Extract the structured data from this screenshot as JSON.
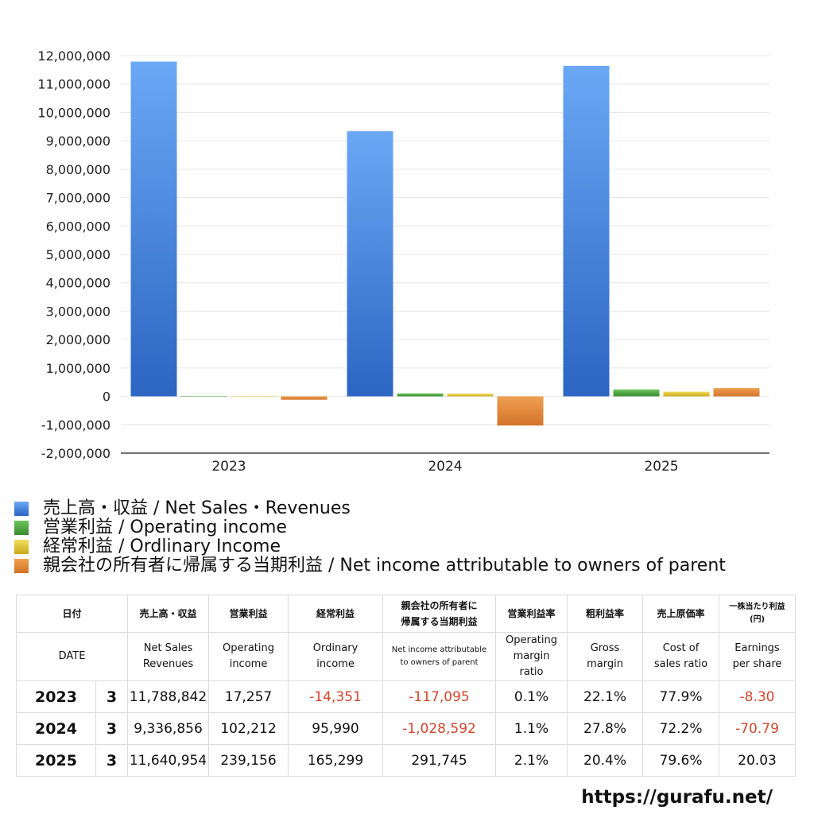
{
  "chart_data": {
    "type": "bar",
    "categories": [
      "2023",
      "2024",
      "2025"
    ],
    "ylim": [
      -2000000,
      12000000
    ],
    "yticks": [
      -2000000,
      -1000000,
      0,
      1000000,
      2000000,
      3000000,
      4000000,
      5000000,
      6000000,
      7000000,
      8000000,
      9000000,
      10000000,
      11000000,
      12000000
    ],
    "ytick_labels": [
      "-2,000,000",
      "-1,000,000",
      "0",
      "1,000,000",
      "2,000,000",
      "3,000,000",
      "4,000,000",
      "5,000,000",
      "6,000,000",
      "7,000,000",
      "8,000,000",
      "9,000,000",
      "10,000,000",
      "11,000,000",
      "12,000,000"
    ],
    "grid": true,
    "legend_position": "bottom",
    "series": [
      {
        "name": "売上高・収益 / Net Sales・Revenues",
        "values": [
          11788842,
          9336856,
          11640954
        ],
        "color_top": "#6aa8f5",
        "color_bottom": "#2c65c2"
      },
      {
        "name": "営業利益 / Operating income",
        "values": [
          17257,
          102212,
          239156
        ],
        "color_top": "#6cc45c",
        "color_bottom": "#3a8a30"
      },
      {
        "name": "経常利益 / Ordlinary Income",
        "values": [
          -14351,
          95990,
          165299
        ],
        "color_top": "#f2de5e",
        "color_bottom": "#c9a91a"
      },
      {
        "name": "親会社の所有者に帰属する当期利益 / Net income attributable to owners of parent",
        "values": [
          -117095,
          -1028592,
          291745
        ],
        "color_top": "#f0a050",
        "color_bottom": "#d27328"
      }
    ]
  },
  "table": {
    "header_jp": {
      "date": "日付",
      "sales": "売上高・収益",
      "op": "営業利益",
      "ord": "経常利益",
      "ni_line1": "親会社の所有者に",
      "ni_line2": "帰属する当期利益",
      "opm": "営業利益率",
      "gross": "粗利益率",
      "cost": "売上原価率",
      "eps_line1": "一株当たり利益",
      "eps_line2": "(円)"
    },
    "header_en": {
      "date": "DATE",
      "sales_line1": "Net Sales",
      "sales_line2": "Revenues",
      "op_line1": "Operating",
      "op_line2": "income",
      "ord_line1": "Ordinary",
      "ord_line2": "income",
      "ni_line1": "Net income attributable",
      "ni_line2": "to owners of parent",
      "opm_line1": "Operating",
      "opm_line2": "margin",
      "opm_line3": "ratio",
      "gross_line1": "Gross",
      "gross_line2": "margin",
      "cost_line1": "Cost of",
      "cost_line2": "sales ratio",
      "eps_line1": "Earnings",
      "eps_line2": "per share"
    },
    "rows": [
      {
        "year": "2023",
        "month": "3",
        "sales": "11,788,842",
        "op": "17,257",
        "ord": "-14,351",
        "ni": "-117,095",
        "opm": "0.1%",
        "gross": "22.1%",
        "cost": "77.9%",
        "eps": "-8.30"
      },
      {
        "year": "2024",
        "month": "3",
        "sales": "9,336,856",
        "op": "102,212",
        "ord": "95,990",
        "ni": "-1,028,592",
        "opm": "1.1%",
        "gross": "27.8%",
        "cost": "72.2%",
        "eps": "-70.79"
      },
      {
        "year": "2025",
        "month": "3",
        "sales": "11,640,954",
        "op": "239,156",
        "ord": "165,299",
        "ni": "291,745",
        "opm": "2.1%",
        "gross": "20.4%",
        "cost": "79.6%",
        "eps": "20.03"
      }
    ]
  },
  "footer": {
    "url": "https://gurafu.net/"
  }
}
